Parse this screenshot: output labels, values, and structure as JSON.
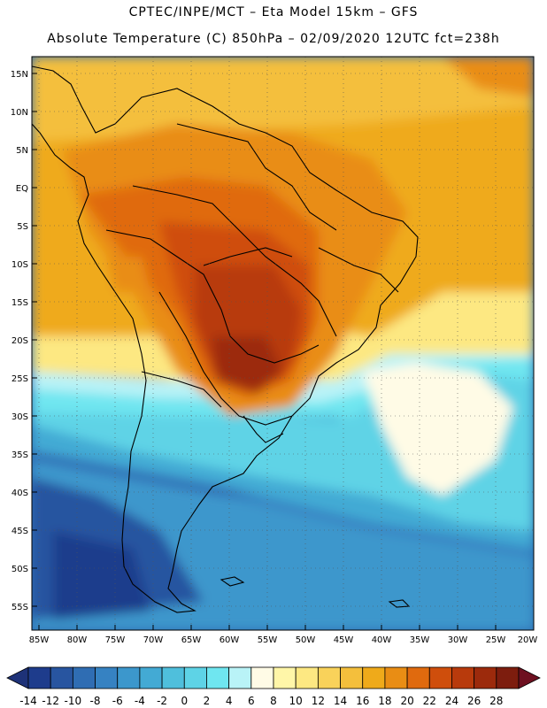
{
  "title_line1": "CPTEC/INPE/MCT –  Eta Model 15km – GFS",
  "title_line2": "Absolute Temperature (C) 850hPa – 02/09/2020 12UTC fct=238h",
  "lat_labels": [
    "15N",
    "10N",
    "5N",
    "EQ",
    "5S",
    "10S",
    "15S",
    "20S",
    "25S",
    "30S",
    "35S",
    "40S",
    "45S",
    "50S",
    "55S"
  ],
  "lon_labels": [
    "85W",
    "80W",
    "75W",
    "70W",
    "65W",
    "60W",
    "55W",
    "50W",
    "45W",
    "40W",
    "35W",
    "30W",
    "25W",
    "20W"
  ],
  "colorbar": {
    "labels": [
      "-14",
      "-12",
      "-10",
      "-8",
      "-6",
      "-4",
      "-2",
      "0",
      "2",
      "4",
      "6",
      "8",
      "10",
      "12",
      "14",
      "16",
      "18",
      "20",
      "22",
      "24",
      "26",
      "28"
    ],
    "colors": [
      "#1e3c8c",
      "#2855a0",
      "#2f6db3",
      "#3682c2",
      "#3c97cc",
      "#43aad4",
      "#4fbfdc",
      "#5ed3e6",
      "#6fe6f0",
      "#b9f3f7",
      "#fffbe6",
      "#fff6a8",
      "#fde882",
      "#f9d25a",
      "#f4bf3c",
      "#efaa1a",
      "#e98d14",
      "#e06a0e",
      "#cf4e0c",
      "#b83a0c",
      "#9c2a0c",
      "#7d1d0e"
    ],
    "min_arrow_color": "#1e3278",
    "max_arrow_color": "#6e1020"
  }
}
